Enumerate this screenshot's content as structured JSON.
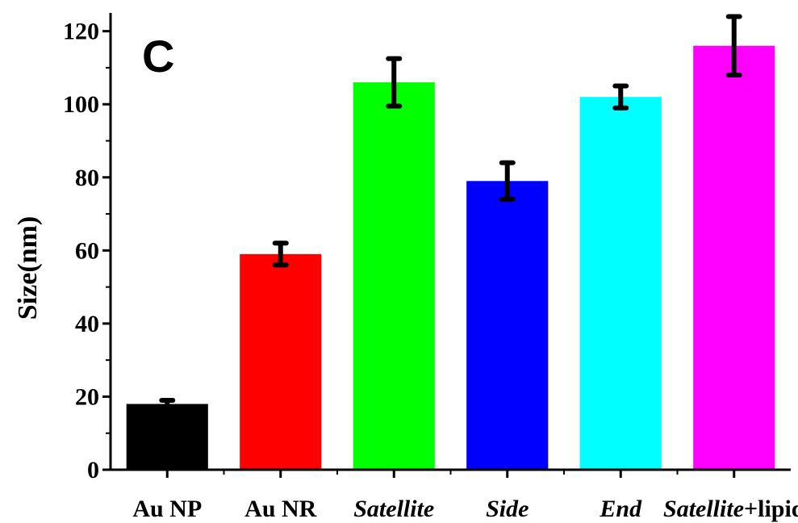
{
  "chart_data": {
    "type": "bar",
    "panel_label": "C",
    "ylabel": "Size(nm)",
    "xlabel": "",
    "ylim": [
      0,
      125
    ],
    "yticks": [
      0,
      20,
      40,
      60,
      80,
      100,
      120
    ],
    "yticks_minor": [
      10,
      30,
      50,
      70,
      90,
      110
    ],
    "categories": [
      {
        "parts": [
          {
            "text": "Au NP",
            "italic": false
          }
        ]
      },
      {
        "parts": [
          {
            "text": "Au NR",
            "italic": false
          }
        ]
      },
      {
        "parts": [
          {
            "text": "Satellite",
            "italic": true
          }
        ]
      },
      {
        "parts": [
          {
            "text": "Side",
            "italic": true
          }
        ]
      },
      {
        "parts": [
          {
            "text": "End",
            "italic": true
          }
        ]
      },
      {
        "parts": [
          {
            "text": "Satellite",
            "italic": true
          },
          {
            "text": "+lipid",
            "italic": false
          }
        ]
      }
    ],
    "values": [
      18,
      59,
      106,
      79,
      102,
      116
    ],
    "errors": [
      1,
      3,
      6.5,
      5,
      3,
      8
    ],
    "colors": [
      "#000000",
      "#ff0000",
      "#00ff00",
      "#0000ff",
      "#00ffff",
      "#ff00ff"
    ],
    "grid": false,
    "legend": "none"
  }
}
